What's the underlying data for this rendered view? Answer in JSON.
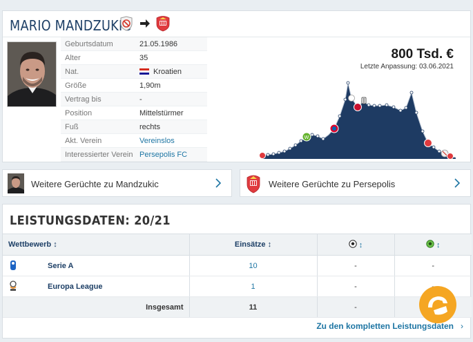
{
  "profile": {
    "name": "MARIO MANDZUKIC",
    "transfer_from_icon": "no-club-icon",
    "transfer_arrow_icon": "arrow-right-icon",
    "transfer_to_icon": "persepolis-crest-icon",
    "facts": [
      {
        "label": "Geburtsdatum",
        "value": "21.05.1986"
      },
      {
        "label": "Alter",
        "value": "35"
      },
      {
        "label": "Nat.",
        "value": "Kroatien",
        "flag": "croatia-flag"
      },
      {
        "label": "Größe",
        "value": "1,90m"
      },
      {
        "label": "Vertrag bis",
        "value": "-"
      },
      {
        "label": "Position",
        "value": "Mittelstürmer"
      },
      {
        "label": "Fuß",
        "value": "rechts"
      },
      {
        "label": "Akt. Verein",
        "value": "Vereinslos"
      },
      {
        "label": "Interessierter Verein",
        "value": "Persepolis FC"
      }
    ],
    "market_value": "800 Tsd. €",
    "last_update": "Letzte Anpassung: 03.06.2021"
  },
  "rumors": {
    "player_label": "Weitere Gerüchte zu Mandzukic",
    "club_label": "Weitere Gerüchte zu Persepolis"
  },
  "performance": {
    "title": "LEISTUNGSDATEN: 20/21",
    "headers": {
      "competition": "Wettbewerb ↕",
      "appearances": "Einsätze ↕",
      "goals_icon": "ball-icon",
      "assists_icon": "assist-ball-icon",
      "sort_glyph": "↕"
    },
    "rows": [
      {
        "logo": "serie-a-logo",
        "competition": "Serie A",
        "appearances": "10",
        "goals": "-",
        "assists": "-"
      },
      {
        "logo": "europa-league-logo",
        "competition": "Europa League",
        "appearances": "1",
        "goals": "-",
        "assists": "-"
      }
    ],
    "total": {
      "label": "Insgesamt",
      "appearances": "11",
      "goals": "-",
      "assists": "-"
    },
    "footer_link": "Zu den kompletten Leistungsdaten",
    "footer_chevron": "›"
  },
  "colors": {
    "brand_blue": "#1d3f66",
    "link_blue": "#1d75a3",
    "chart_fill": "#1e3b63",
    "persepolis_red": "#e03a3e"
  }
}
